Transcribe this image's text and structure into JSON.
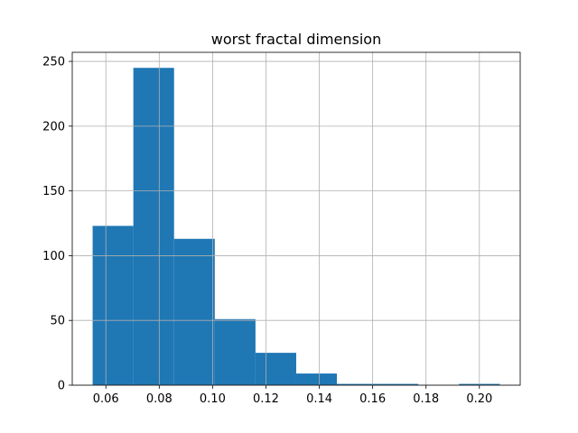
{
  "chart_data": {
    "type": "bar",
    "title": "worst fractal dimension",
    "xlabel": "",
    "ylabel": "",
    "bin_edges": [
      0.05504,
      0.0703,
      0.08556,
      0.10082,
      0.11608,
      0.13134,
      0.1466,
      0.16186,
      0.17712,
      0.19238,
      0.20764
    ],
    "values": [
      123,
      245,
      113,
      51,
      25,
      9,
      1,
      1,
      0,
      1
    ],
    "xlim": [
      0.0474,
      0.2153
    ],
    "ylim": [
      0,
      257
    ],
    "x_ticks": [
      0.06,
      0.08,
      0.1,
      0.12,
      0.14,
      0.16,
      0.18,
      0.2
    ],
    "x_tick_labels": [
      "0.06",
      "0.08",
      "0.10",
      "0.12",
      "0.14",
      "0.16",
      "0.18",
      "0.20"
    ],
    "y_ticks": [
      0,
      50,
      100,
      150,
      200,
      250
    ],
    "y_tick_labels": [
      "0",
      "50",
      "100",
      "150",
      "200",
      "250"
    ],
    "grid": true,
    "colors": {
      "bar": "#1f77b4",
      "grid": "#b0b0b0",
      "axis": "#000000"
    }
  }
}
